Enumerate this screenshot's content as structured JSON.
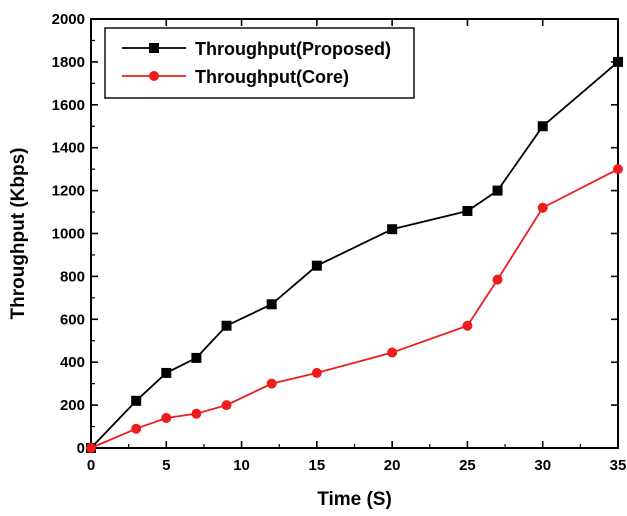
{
  "chart_data": {
    "type": "line",
    "title": "",
    "xlabel": "Time (S)",
    "ylabel": "Throughput (Kbps)",
    "xlim": [
      0,
      35
    ],
    "ylim": [
      0,
      2000
    ],
    "xticks": [
      0,
      5,
      10,
      15,
      20,
      25,
      30,
      35
    ],
    "yticks": [
      0,
      200,
      400,
      600,
      800,
      1000,
      1200,
      1400,
      1600,
      1800,
      2000
    ],
    "grid": false,
    "legend_position": "top-left",
    "series": [
      {
        "name": "Throughput(Proposed)",
        "color": "#000000",
        "marker": "square",
        "x": [
          0,
          3,
          5,
          7,
          9,
          12,
          15,
          20,
          25,
          27,
          30,
          35
        ],
        "y": [
          0,
          220,
          350,
          420,
          570,
          670,
          850,
          1020,
          1105,
          1200,
          1500,
          1800
        ]
      },
      {
        "name": "Throughput(Core)",
        "color": "#ee1c1c",
        "marker": "circle",
        "x": [
          0,
          3,
          5,
          7,
          9,
          12,
          15,
          20,
          25,
          27,
          30,
          35
        ],
        "y": [
          0,
          90,
          140,
          160,
          200,
          300,
          350,
          445,
          570,
          785,
          1120,
          1300
        ]
      }
    ]
  }
}
